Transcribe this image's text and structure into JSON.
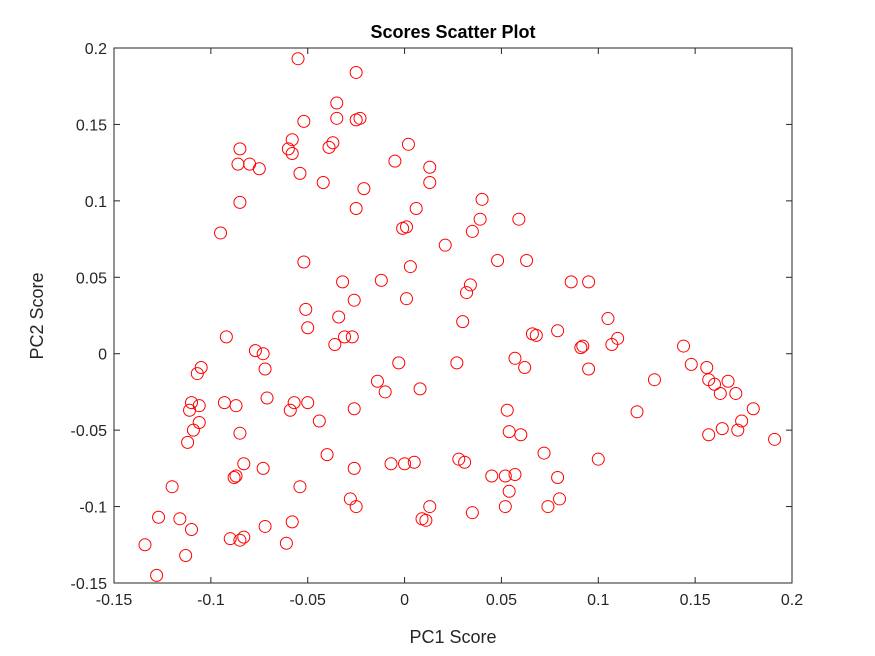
{
  "chart_data": {
    "type": "scatter",
    "title": "Scores Scatter Plot",
    "xlabel": "PC1 Score",
    "ylabel": "PC2 Score",
    "xlim": [
      -0.15,
      0.2
    ],
    "ylim": [
      -0.15,
      0.2
    ],
    "xticks": [
      -0.15,
      -0.1,
      -0.05,
      0,
      0.05,
      0.1,
      0.15,
      0.2
    ],
    "yticks": [
      -0.15,
      -0.1,
      -0.05,
      0,
      0.05,
      0.1,
      0.15,
      0.2
    ],
    "xtick_labels": [
      "-0.15",
      "-0.1",
      "-0.05",
      "0",
      "0.05",
      "0.1",
      "0.15",
      "0.2"
    ],
    "ytick_labels": [
      "-0.15",
      "-0.1",
      "-0.05",
      "0",
      "0.05",
      "0.1",
      "0.15",
      "0.2"
    ],
    "grid": false,
    "marker": "open-circle",
    "marker_color": "#ff0000",
    "axis_color": "#262626",
    "x": [
      -0.055,
      -0.025,
      -0.035,
      -0.035,
      -0.025,
      -0.023,
      -0.052,
      -0.058,
      -0.06,
      -0.058,
      -0.085,
      -0.086,
      -0.08,
      -0.075,
      -0.037,
      -0.039,
      0.002,
      -0.005,
      0.013,
      0.013,
      -0.021,
      -0.054,
      -0.042,
      -0.085,
      -0.095,
      0.04,
      0.039,
      0.059,
      0.035,
      0.006,
      0.001,
      -0.001,
      -0.025,
      0.021,
      0.003,
      0.048,
      0.063,
      -0.052,
      -0.032,
      -0.034,
      -0.026,
      -0.051,
      -0.05,
      -0.036,
      -0.012,
      0.001,
      0.032,
      0.034,
      0.03,
      -0.031,
      -0.027,
      -0.092,
      -0.077,
      -0.073,
      -0.072,
      -0.105,
      -0.107,
      -0.11,
      -0.111,
      -0.106,
      -0.093,
      -0.087,
      -0.106,
      -0.112,
      -0.109,
      -0.085,
      -0.071,
      -0.059,
      -0.057,
      -0.05,
      -0.044,
      -0.026,
      -0.014,
      -0.01,
      -0.003,
      0.008,
      0.027,
      0.057,
      0.062,
      0.066,
      0.068,
      0.079,
      0.086,
      0.095,
      0.105,
      0.107,
      0.11,
      0.091,
      0.092,
      0.095,
      0.053,
      0.054,
      0.06,
      0.072,
      0.079,
      0.1,
      0.12,
      0.129,
      0.144,
      0.148,
      0.156,
      0.157,
      0.16,
      0.164,
      0.167,
      0.172,
      0.18,
      0.174,
      0.171,
      0.163,
      0.157,
      0.191,
      -0.083,
      -0.087,
      -0.088,
      -0.073,
      -0.04,
      -0.026,
      -0.007,
      0.0,
      0.005,
      0.028,
      0.031,
      0.045,
      0.052,
      0.057,
      0.074,
      0.08,
      -0.054,
      -0.028,
      -0.025,
      -0.058,
      -0.072,
      -0.083,
      -0.085,
      -0.09,
      -0.11,
      -0.127,
      -0.12,
      -0.116,
      -0.134,
      -0.113,
      -0.128,
      -0.061,
      0.009,
      0.011,
      0.013,
      0.035,
      0.052,
      0.054
    ],
    "y": [
      0.193,
      0.184,
      0.164,
      0.154,
      0.153,
      0.154,
      0.152,
      0.14,
      0.134,
      0.131,
      0.134,
      0.124,
      0.124,
      0.121,
      0.138,
      0.135,
      0.137,
      0.126,
      0.122,
      0.112,
      0.108,
      0.118,
      0.112,
      0.099,
      0.079,
      0.101,
      0.088,
      0.088,
      0.08,
      0.095,
      0.083,
      0.082,
      0.095,
      0.071,
      0.057,
      0.061,
      0.061,
      0.06,
      0.047,
      0.024,
      0.035,
      0.029,
      0.017,
      0.006,
      0.048,
      0.036,
      0.04,
      0.045,
      0.021,
      0.011,
      0.011,
      0.011,
      0.002,
      0.0,
      -0.01,
      -0.009,
      -0.013,
      -0.032,
      -0.037,
      -0.034,
      -0.032,
      -0.034,
      -0.045,
      -0.058,
      -0.05,
      -0.052,
      -0.029,
      -0.037,
      -0.032,
      -0.032,
      -0.044,
      -0.036,
      -0.018,
      -0.025,
      -0.006,
      -0.023,
      -0.006,
      -0.003,
      -0.009,
      0.013,
      0.012,
      0.015,
      0.047,
      0.047,
      0.023,
      0.006,
      0.01,
      0.004,
      0.005,
      -0.01,
      -0.037,
      -0.051,
      -0.053,
      -0.065,
      -0.081,
      -0.069,
      -0.038,
      -0.017,
      0.005,
      -0.007,
      -0.009,
      -0.017,
      -0.02,
      -0.049,
      -0.018,
      -0.05,
      -0.036,
      -0.044,
      -0.026,
      -0.026,
      -0.053,
      -0.056,
      -0.072,
      -0.08,
      -0.081,
      -0.075,
      -0.066,
      -0.075,
      -0.072,
      -0.072,
      -0.071,
      -0.069,
      -0.071,
      -0.08,
      -0.08,
      -0.079,
      -0.1,
      -0.095,
      -0.087,
      -0.095,
      -0.1,
      -0.11,
      -0.113,
      -0.12,
      -0.122,
      -0.121,
      -0.115,
      -0.107,
      -0.087,
      -0.108,
      -0.125,
      -0.132,
      -0.145,
      -0.124,
      -0.108,
      -0.109,
      -0.1,
      -0.104,
      -0.1,
      -0.09
    ]
  }
}
